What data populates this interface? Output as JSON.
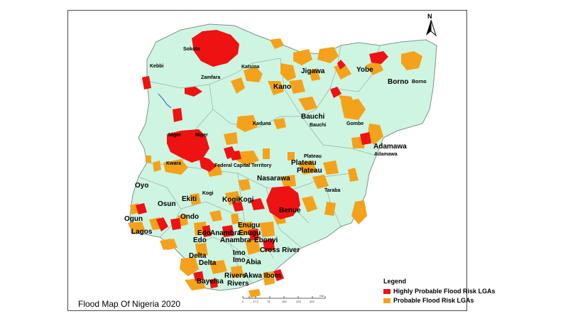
{
  "map": {
    "title": "Flood Map Of Nigeria 2020",
    "colors": {
      "land": "#cef5e1",
      "border": "#9aaea4",
      "high_risk": "#ee1212",
      "probable_risk": "#f4a21b",
      "water": "#3e7fd4"
    }
  },
  "legend": {
    "title": "Legend",
    "items": [
      {
        "label": "Highly Probable Flood Risk LGAs",
        "color": "#ee1212"
      },
      {
        "label": "Probable Flood Risk LGAs",
        "color": "#f4a21b"
      }
    ]
  },
  "north_arrow": {
    "label": "N",
    "icon": "north-arrow-icon"
  },
  "scale_bar": {
    "ticks": [
      "0",
      "37.5",
      "75",
      "150",
      "225",
      "300"
    ],
    "unit": "KM"
  },
  "labels": {
    "sokoto": "Sokoto",
    "kebbi": "Kebbi",
    "zamfara": "Zamfara",
    "katsina": "Katsina",
    "kano": "Kano",
    "jigawa": "Jigawa",
    "yobe": "Yobe",
    "borno_big": "Borno",
    "borno_small": "Borno",
    "kaduna": "Kaduna",
    "bauchi_big": "Bauchi",
    "bauchi_small": "Bauchi",
    "gombe": "Gombe",
    "adamawa_big": "Adamawa",
    "adamawa_small": "Adamawa",
    "niger1": "Niger",
    "niger2": "Niger",
    "kwara": "Kwara",
    "fct": "Federal Capital Territory",
    "plateau_small": "Plateau",
    "plateau_a": "Plateau",
    "plateau_b": "Plateau",
    "nasarawa": "Nasarawa",
    "taraba": "Taraba",
    "oyo": "Oyo",
    "ekiti": "Ekiti",
    "kogi_small": "Kogi",
    "kogi_big": "KogiKogi",
    "osun": "Osun",
    "benue": "Benue",
    "ogun": "Ogun",
    "ondo": "Ondo",
    "lagos": "Lagos",
    "enugu": "Enugu",
    "edo1": "Edo",
    "anambra1": "Anambra",
    "enugu2": "Enugu",
    "edo2": "Edo",
    "anambra2": "Anambra",
    "ebonyi": "Ebonyi",
    "delta1": "Delta",
    "imo1": "Imo",
    "cross_river": "Cross River",
    "delta2": "Delta",
    "imo2": "Imo",
    "abia": "Abia",
    "rivers1": "Rivers",
    "akwa_ibom": "Akwa Ibom",
    "bayelsa": "Bayelsa",
    "rivers2": "Rivers"
  }
}
